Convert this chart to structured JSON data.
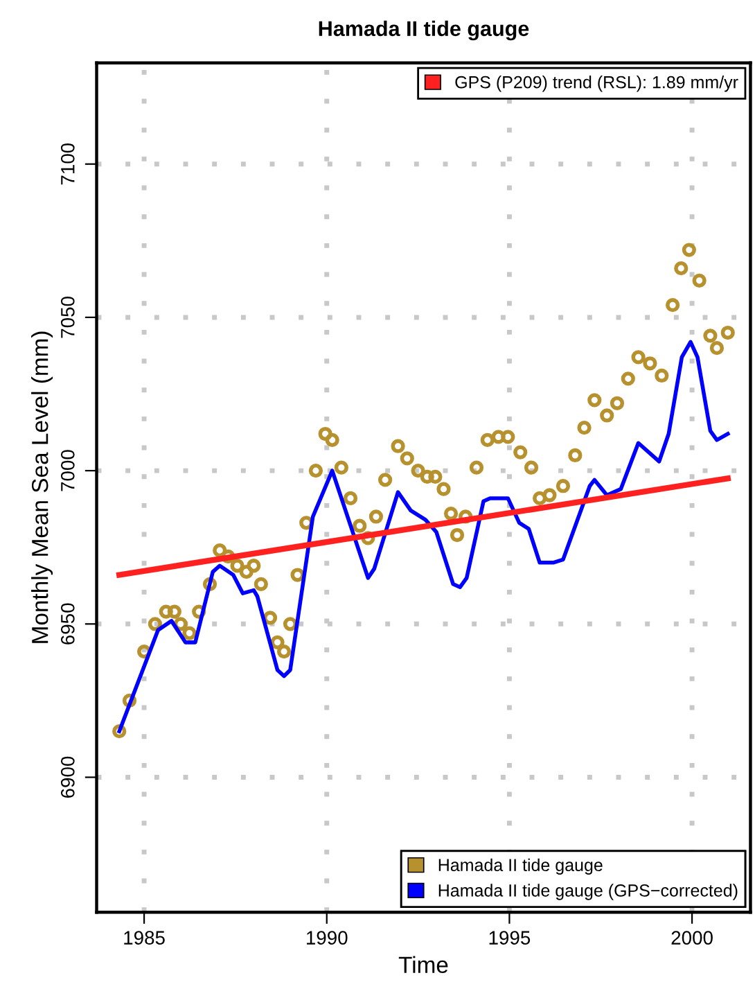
{
  "chart_data": {
    "type": "line",
    "title": "Hamada II tide gauge",
    "xlabel": "Time",
    "ylabel": "Monthly Mean Sea Level (mm)",
    "xlim": [
      1983.7,
      2001.6
    ],
    "xticks": [
      1985,
      1990,
      1995,
      2000
    ],
    "ylim": [
      6856,
      7133
    ],
    "yticks": [
      6900,
      6950,
      7000,
      7050,
      7100
    ],
    "grid": true,
    "legend": "bottom right",
    "series": [
      {
        "name": "GPS (P209) trend (RSL): 1.89 mm/yr",
        "color": "#ff2020",
        "x": [
          1984.32,
          2000.98
        ],
        "values": [
          6966,
          6997.5
        ]
      },
      {
        "name": "Hamada II tide gauge",
        "type": "scatter",
        "marker": "circle",
        "color": "#b8912f",
        "x": [
          1984.32,
          1984.6,
          1985.0,
          1985.3,
          1985.6,
          1985.83,
          1986.0,
          1986.24,
          1986.5,
          1986.8,
          1987.07,
          1987.3,
          1987.55,
          1987.8,
          1988.0,
          1988.2,
          1988.45,
          1988.65,
          1988.83,
          1989.0,
          1989.2,
          1989.44,
          1989.7,
          1989.96,
          1990.15,
          1990.4,
          1990.65,
          1990.9,
          1991.13,
          1991.35,
          1991.6,
          1991.95,
          1992.2,
          1992.5,
          1992.75,
          1992.97,
          1993.2,
          1993.4,
          1993.57,
          1993.8,
          1994.1,
          1994.4,
          1994.7,
          1994.96,
          1995.3,
          1995.6,
          1995.83,
          1996.1,
          1996.47,
          1996.8,
          1997.05,
          1997.33,
          1997.67,
          1997.95,
          1998.25,
          1998.53,
          1998.85,
          1999.17,
          1999.47,
          1999.7,
          1999.92,
          2000.2,
          2000.5,
          2000.68,
          2000.98
        ],
        "values": [
          6915,
          6925,
          6941,
          6950,
          6954,
          6954,
          6950,
          6947,
          6954,
          6963,
          6974,
          6972,
          6969,
          6967,
          6969,
          6963,
          6952,
          6944,
          6941,
          6950,
          6966,
          6983,
          7000,
          7012,
          7010,
          7001,
          6991,
          6982,
          6978,
          6985,
          6997,
          7008,
          7004,
          7000,
          6998,
          6998,
          6994,
          6986,
          6979,
          6985,
          7001,
          7010,
          7011,
          7011,
          7006,
          7001,
          6991,
          6992,
          6995,
          7005,
          7014,
          7023,
          7018,
          7022,
          7030,
          7037,
          7035,
          7031,
          7054,
          7066,
          7072,
          7062,
          7044,
          7040,
          7045
        ]
      },
      {
        "name": "Hamada II tide gauge (GPS−corrected)",
        "color": "#0000ff",
        "x": [
          1984.32,
          1985.38,
          1985.75,
          1986.13,
          1986.4,
          1986.88,
          1987.07,
          1987.44,
          1987.7,
          1988.0,
          1988.1,
          1988.65,
          1988.83,
          1989.0,
          1989.62,
          1990.15,
          1991.13,
          1991.3,
          1991.95,
          1992.3,
          1992.7,
          1993.0,
          1993.46,
          1993.65,
          1993.83,
          1994.29,
          1994.47,
          1994.96,
          1995.27,
          1995.53,
          1995.83,
          1996.2,
          1996.47,
          1997.2,
          1997.33,
          1997.67,
          1998.05,
          1998.53,
          1999.1,
          1999.36,
          1999.72,
          1999.96,
          2000.15,
          2000.5,
          2000.68,
          2000.98
        ],
        "values": [
          6915,
          6948,
          6951,
          6944,
          6944,
          6967,
          6969,
          6966,
          6960,
          6961,
          6959,
          6935,
          6933,
          6935,
          6985,
          7000,
          6965,
          6968,
          6993,
          6987,
          6984,
          6980,
          6963,
          6962,
          6965,
          6990,
          6991,
          6991,
          6983,
          6981,
          6970,
          6970,
          6971,
          6995,
          6997,
          6992,
          6994,
          7009,
          7003,
          7012,
          7037,
          7042,
          7037,
          7013,
          7010,
          7012
        ]
      }
    ]
  }
}
